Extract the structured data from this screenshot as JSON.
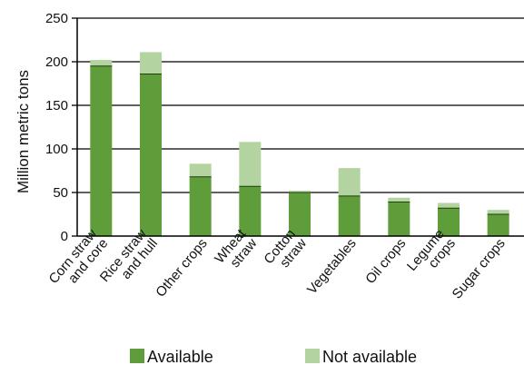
{
  "chart_data": {
    "type": "bar",
    "stacked": true,
    "title": "",
    "xlabel": "",
    "ylabel": "Million metric tons",
    "ylim": [
      0,
      250
    ],
    "yticks": [
      0,
      50,
      100,
      150,
      200,
      250
    ],
    "grid": true,
    "legend_position": "bottom",
    "categories": [
      [
        "Corn straw",
        "and core"
      ],
      [
        "Rice straw",
        "and hull"
      ],
      [
        "Other crops"
      ],
      [
        "Wheat",
        "straw"
      ],
      [
        "Cotton",
        "straw"
      ],
      [
        "Vegetables"
      ],
      [
        "Oil crops"
      ],
      [
        "Legume",
        "crops"
      ],
      [
        "Sugar crops"
      ]
    ],
    "series": [
      {
        "name": "Available",
        "color": "#5e9d3a",
        "values": [
          195,
          186,
          68,
          57,
          50,
          46,
          39,
          32,
          25
        ]
      },
      {
        "name": "Not available",
        "color": "#b3d4a0",
        "values": [
          7,
          25,
          15,
          51,
          2,
          32,
          5,
          6,
          5
        ]
      }
    ]
  }
}
